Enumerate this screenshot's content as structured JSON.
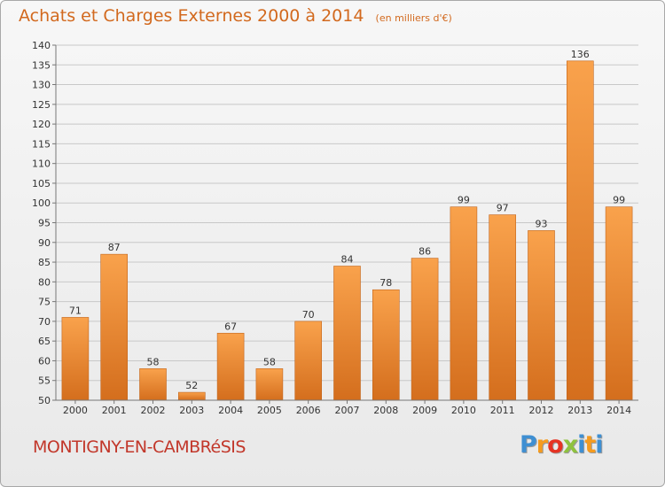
{
  "header": {
    "title": "Achats et Charges Externes 2000 à 2014",
    "unit": "(en milliers d'€)"
  },
  "footer": {
    "commune": "MONTIGNY-EN-CAMBRéSIS",
    "logo_letters": [
      "P",
      "r",
      "o",
      "x",
      "i",
      "t",
      "i"
    ],
    "logo_colors": [
      "#3f8fd2",
      "#f59b1f",
      "#e63323",
      "#8fc23f",
      "#3f8fd2",
      "#f59b1f",
      "#3f8fd2"
    ]
  },
  "colors": {
    "bar_light": "#f9a24c",
    "bar_dark": "#d46e1d",
    "title": "#d2691e",
    "commune": "#c2372a"
  },
  "chart_data": {
    "type": "bar",
    "categories": [
      "2000",
      "2001",
      "2002",
      "2003",
      "2004",
      "2005",
      "2006",
      "2007",
      "2008",
      "2009",
      "2010",
      "2011",
      "2012",
      "2013",
      "2014"
    ],
    "values": [
      71,
      87,
      58,
      52,
      67,
      58,
      70,
      84,
      78,
      86,
      99,
      97,
      93,
      136,
      99
    ],
    "title": "Achats et Charges Externes 2000 à 2014",
    "xlabel": "",
    "ylabel": "",
    "ylim": [
      50,
      140
    ],
    "yticks": [
      50,
      55,
      60,
      65,
      70,
      75,
      80,
      85,
      90,
      95,
      100,
      105,
      110,
      115,
      120,
      125,
      130,
      135,
      140
    ],
    "grid": true,
    "legend": "none"
  }
}
